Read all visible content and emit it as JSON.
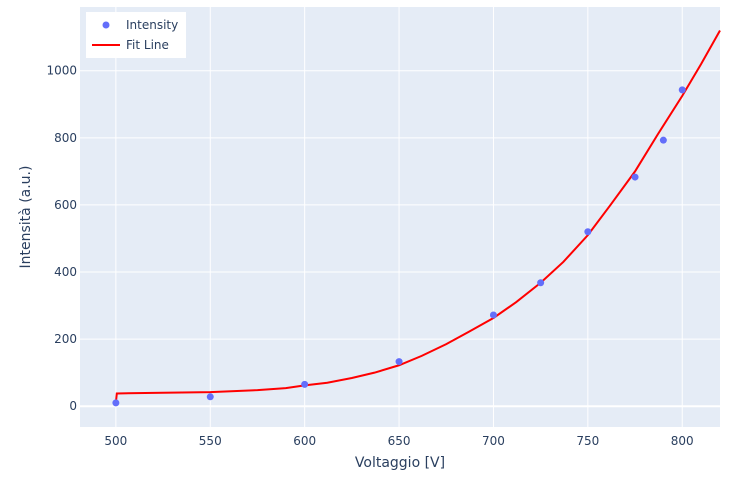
{
  "chart_data": {
    "type": "scatter",
    "title": "",
    "xlabel": "Voltaggio [V]",
    "ylabel": "Intensità (a.u.)",
    "xlim": [
      481,
      820
    ],
    "ylim": [
      -62,
      1190
    ],
    "x_ticks": [
      500,
      550,
      600,
      650,
      700,
      750,
      800
    ],
    "y_ticks": [
      0,
      200,
      400,
      600,
      800,
      1000
    ],
    "grid": true,
    "legend_position": "top-left",
    "colors": {
      "plot_bg": "#e5ecf6",
      "grid": "#ffffff",
      "points": "#636efa",
      "fit": "#ff0000"
    },
    "series": [
      {
        "name": "Intensity",
        "mode": "markers",
        "x": [
          500,
          550,
          600,
          650,
          700,
          725,
          750,
          775,
          790,
          800
        ],
        "y": [
          10,
          28,
          65,
          133,
          272,
          368,
          520,
          683,
          793,
          943
        ]
      },
      {
        "name": "Fit Line",
        "mode": "lines",
        "x": [
          500,
          500.5,
          525,
          550,
          575,
          590,
          600,
          612,
          625,
          637,
          650,
          662,
          675,
          687,
          700,
          712,
          725,
          737,
          750,
          762,
          775,
          787,
          800,
          810,
          820
        ],
        "y": [
          10,
          38,
          40,
          42,
          48,
          54,
          62,
          70,
          84,
          100,
          122,
          150,
          185,
          222,
          263,
          310,
          368,
          430,
          510,
          600,
          700,
          810,
          925,
          1020,
          1120
        ]
      }
    ]
  }
}
